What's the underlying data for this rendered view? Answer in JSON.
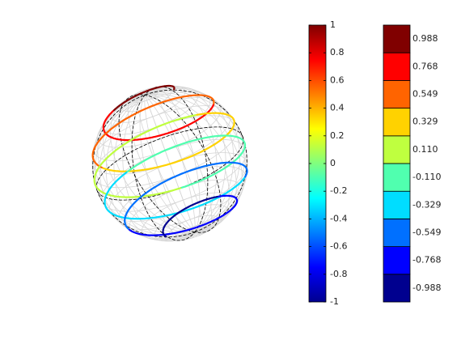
{
  "chart_data": [
    {
      "type": "colorbar",
      "colormap": "jet",
      "ylim": [
        -1,
        1
      ],
      "yticks": [
        -1,
        -0.8,
        -0.6,
        -0.4,
        -0.2,
        0,
        0.2,
        0.4,
        0.6,
        0.8,
        1
      ]
    },
    {
      "type": "discrete-colorbar",
      "ylim": [
        -1.0976,
        1.0976
      ],
      "yticks": [
        -0.988,
        -0.768,
        -0.549,
        {
          "value": -0.329,
          "label": "-0.329"
        },
        {
          "value": -0.11,
          "label": "-0.110"
        },
        {
          "value": 0.11,
          "label": "0.110"
        },
        0.329,
        0.549,
        0.768,
        0.988
      ],
      "colors": [
        "#00008f",
        "#0000ff",
        "#0070ff",
        "#00ddff",
        "#50ffaf",
        "#bfff3f",
        "#ffd200",
        "#ff6400",
        "#ff0000",
        "#800000"
      ]
    }
  ]
}
